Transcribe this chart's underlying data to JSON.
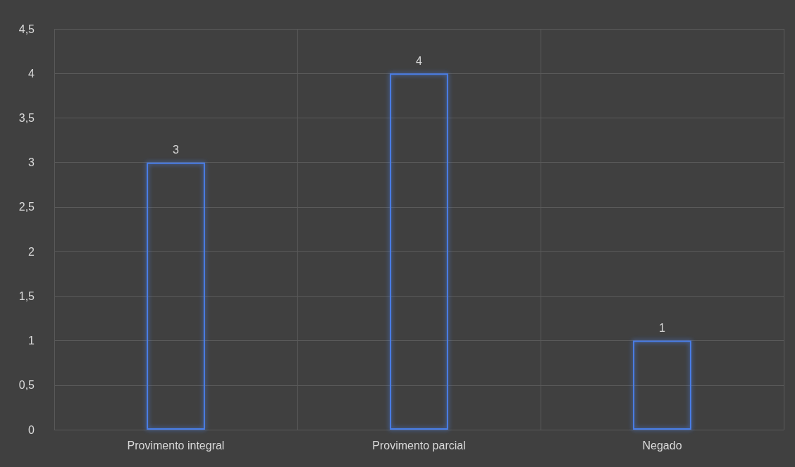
{
  "chart_data": {
    "type": "bar",
    "categories": [
      "Provimento integral",
      "Provimento parcial",
      "Negado"
    ],
    "values": [
      3,
      4,
      1
    ],
    "color": "#4a7ee8",
    "ylim": [
      0,
      4.5
    ],
    "yticks": [
      0,
      {
        "value": 0.5,
        "label": "0,5"
      },
      1,
      {
        "value": 1.5,
        "label": "1,5"
      },
      2,
      {
        "value": 2.5,
        "label": "2,5"
      },
      3,
      {
        "value": 3.5,
        "label": "3,5"
      },
      4,
      {
        "value": 4.5,
        "label": "4,5"
      }
    ],
    "grid": true,
    "data_labels": true
  }
}
